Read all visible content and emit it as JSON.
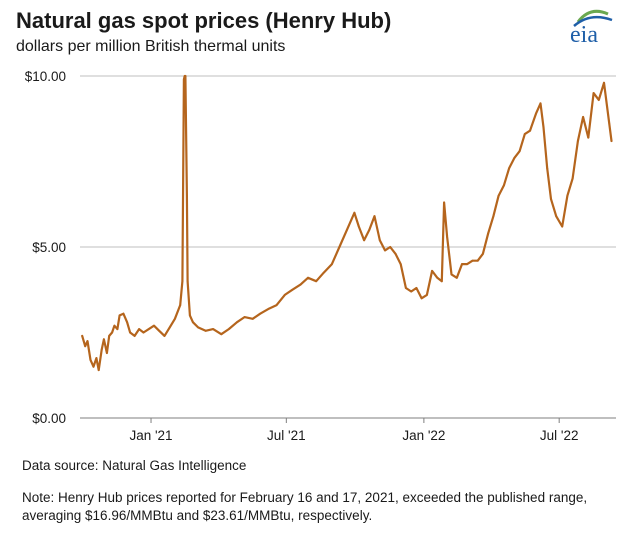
{
  "header": {
    "title": "Natural gas spot prices (Henry Hub)",
    "subtitle": "dollars per million British thermal units",
    "logo_text": "eia"
  },
  "footer": {
    "source": "Data source: Natural Gas Intelligence",
    "note": "Note: Henry Hub prices reported for February 16 and 17, 2021, exceeded the published range, averaging $16.96/MMBtu and $23.61/MMBtu, respectively."
  },
  "colors": {
    "line": "#b5651d",
    "grid": "#bfbfbf",
    "axis": "#7f7f7f",
    "logo_blue": "#1f5fa8",
    "logo_green": "#6aa84f"
  },
  "chart_data": {
    "type": "line",
    "title": "Natural gas spot prices (Henry Hub)",
    "ylabel": "dollars per million British thermal units",
    "xlim": [
      "2020-09-28",
      "2022-09-15"
    ],
    "ylim": [
      0,
      10
    ],
    "y_ticks": [
      0,
      5,
      10
    ],
    "y_tick_labels": [
      "$0.00",
      "$5.00",
      "$10.00"
    ],
    "x_ticks": [
      "2021-01-01",
      "2021-07-01",
      "2022-01-01",
      "2022-07-01"
    ],
    "x_tick_labels": [
      "Jan '21",
      "Jul '21",
      "Jan '22",
      "Jul '22"
    ],
    "grid": true,
    "series": [
      {
        "name": "Henry Hub spot price",
        "x": [
          "2020-10-01",
          "2020-10-05",
          "2020-10-08",
          "2020-10-12",
          "2020-10-16",
          "2020-10-20",
          "2020-10-23",
          "2020-10-27",
          "2020-10-30",
          "2020-11-03",
          "2020-11-06",
          "2020-11-10",
          "2020-11-13",
          "2020-11-17",
          "2020-11-20",
          "2020-11-25",
          "2020-11-30",
          "2020-12-04",
          "2020-12-10",
          "2020-12-16",
          "2020-12-22",
          "2020-12-29",
          "2021-01-05",
          "2021-01-12",
          "2021-01-19",
          "2021-01-26",
          "2021-02-02",
          "2021-02-09",
          "2021-02-12",
          "2021-02-14",
          "2021-02-15",
          "2021-02-16",
          "2021-02-18",
          "2021-02-19",
          "2021-02-22",
          "2021-02-26",
          "2021-03-05",
          "2021-03-15",
          "2021-03-25",
          "2021-04-05",
          "2021-04-15",
          "2021-04-26",
          "2021-05-06",
          "2021-05-17",
          "2021-05-27",
          "2021-06-08",
          "2021-06-18",
          "2021-06-29",
          "2021-07-09",
          "2021-07-20",
          "2021-07-30",
          "2021-08-10",
          "2021-08-20",
          "2021-08-31",
          "2021-09-10",
          "2021-09-20",
          "2021-09-30",
          "2021-10-06",
          "2021-10-13",
          "2021-10-20",
          "2021-10-27",
          "2021-11-03",
          "2021-11-10",
          "2021-11-17",
          "2021-11-24",
          "2021-12-01",
          "2021-12-08",
          "2021-12-15",
          "2021-12-22",
          "2021-12-29",
          "2022-01-05",
          "2022-01-12",
          "2022-01-19",
          "2022-01-25",
          "2022-01-28",
          "2022-02-01",
          "2022-02-07",
          "2022-02-14",
          "2022-02-21",
          "2022-02-28",
          "2022-03-07",
          "2022-03-14",
          "2022-03-21",
          "2022-03-28",
          "2022-04-04",
          "2022-04-11",
          "2022-04-18",
          "2022-04-25",
          "2022-05-02",
          "2022-05-09",
          "2022-05-16",
          "2022-05-23",
          "2022-05-31",
          "2022-06-06",
          "2022-06-10",
          "2022-06-15",
          "2022-06-20",
          "2022-06-27",
          "2022-07-05",
          "2022-07-12",
          "2022-07-19",
          "2022-07-26",
          "2022-08-02",
          "2022-08-09",
          "2022-08-16",
          "2022-08-23",
          "2022-08-30",
          "2022-09-06",
          "2022-09-09"
        ],
        "values": [
          2.4,
          2.1,
          2.25,
          1.7,
          1.5,
          1.75,
          1.4,
          2.0,
          2.3,
          1.9,
          2.4,
          2.5,
          2.7,
          2.6,
          3.0,
          3.05,
          2.8,
          2.5,
          2.4,
          2.6,
          2.5,
          2.6,
          2.7,
          2.55,
          2.4,
          2.65,
          2.9,
          3.3,
          4.0,
          9.9,
          10.0,
          10.0,
          6.5,
          4.0,
          3.0,
          2.8,
          2.65,
          2.55,
          2.6,
          2.45,
          2.6,
          2.8,
          2.95,
          2.9,
          3.05,
          3.2,
          3.3,
          3.6,
          3.75,
          3.9,
          4.1,
          4.0,
          4.25,
          4.5,
          5.0,
          5.5,
          6.0,
          5.6,
          5.2,
          5.5,
          5.9,
          5.2,
          4.9,
          5.0,
          4.8,
          4.5,
          3.8,
          3.7,
          3.8,
          3.5,
          3.6,
          4.3,
          4.1,
          4.0,
          6.3,
          5.3,
          4.2,
          4.1,
          4.5,
          4.5,
          4.6,
          4.6,
          4.8,
          5.4,
          5.9,
          6.5,
          6.8,
          7.3,
          7.6,
          7.8,
          8.3,
          8.4,
          8.9,
          9.2,
          8.5,
          7.3,
          6.4,
          5.9,
          5.6,
          6.5,
          7.0,
          8.1,
          8.8,
          8.2,
          9.5,
          9.3,
          9.8,
          8.6,
          8.1
        ]
      }
    ]
  }
}
